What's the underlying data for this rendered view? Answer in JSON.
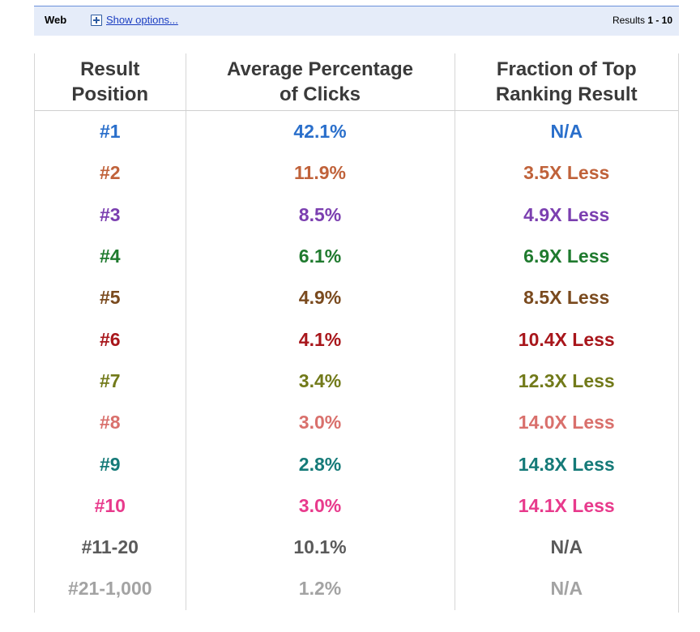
{
  "topbar": {
    "web_label": "Web",
    "show_options": "Show options...",
    "results_prefix": "Results",
    "results_range": "1 - 10"
  },
  "table": {
    "headers": [
      "Result\nPosition",
      "Average Percentage\nof Clicks",
      "Fraction of Top\nRanking Result"
    ],
    "rows": [
      {
        "position": "#1",
        "clicks": "42.1%",
        "fraction": "N/A",
        "color": "#2a6fcb"
      },
      {
        "position": "#2",
        "clicks": "11.9%",
        "fraction": "3.5X Less",
        "color": "#c0623a"
      },
      {
        "position": "#3",
        "clicks": "8.5%",
        "fraction": "4.9X Less",
        "color": "#7b3fb0"
      },
      {
        "position": "#4",
        "clicks": "6.1%",
        "fraction": "6.9X Less",
        "color": "#1f7a2e"
      },
      {
        "position": "#5",
        "clicks": "4.9%",
        "fraction": "8.5X Less",
        "color": "#7a4a1e"
      },
      {
        "position": "#6",
        "clicks": "4.1%",
        "fraction": "10.4X Less",
        "color": "#a8161b"
      },
      {
        "position": "#7",
        "clicks": "3.4%",
        "fraction": "12.3X Less",
        "color": "#727a1a"
      },
      {
        "position": "#8",
        "clicks": "3.0%",
        "fraction": "14.0X Less",
        "color": "#d9706c"
      },
      {
        "position": "#9",
        "clicks": "2.8%",
        "fraction": "14.8X Less",
        "color": "#157a78"
      },
      {
        "position": "#10",
        "clicks": "3.0%",
        "fraction": "14.1X Less",
        "color": "#e83a8c"
      },
      {
        "position": "#11-20",
        "clicks": "10.1%",
        "fraction": "N/A",
        "color": "#5a5a5a"
      },
      {
        "position": "#21-1,000",
        "clicks": "1.2%",
        "fraction": "N/A",
        "color": "#a3a3a3"
      }
    ]
  }
}
